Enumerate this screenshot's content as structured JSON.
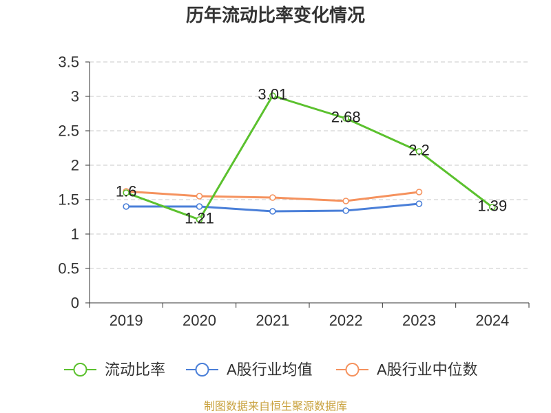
{
  "footer": "制图数据来自恒生聚源数据库",
  "colors": {
    "footer": "#c9a23f",
    "text": "#333333",
    "grid": "#c8c8c8"
  },
  "chart_data": {
    "type": "line",
    "title": "历年流动比率变化情况",
    "categories": [
      "2019",
      "2020",
      "2021",
      "2022",
      "2023",
      "2024"
    ],
    "ylim": [
      0,
      3.5
    ],
    "yticks": [
      0,
      0.5,
      1,
      1.5,
      2,
      2.5,
      3,
      3.5
    ],
    "grid": "dashed",
    "legend": "bottom",
    "series": [
      {
        "name": "流动比率",
        "values": [
          1.6,
          1.21,
          3.01,
          2.68,
          2.2,
          1.39
        ],
        "color": "#5bc12e",
        "data_labels": true
      },
      {
        "name": "A股行业均值",
        "values": [
          1.4,
          1.4,
          1.33,
          1.34,
          1.44,
          null
        ],
        "color": "#4a7fd8",
        "data_labels": false
      },
      {
        "name": "A股行业中位数",
        "values": [
          1.62,
          1.55,
          1.53,
          1.48,
          1.61,
          null
        ],
        "color": "#f5925e",
        "data_labels": false
      }
    ]
  }
}
